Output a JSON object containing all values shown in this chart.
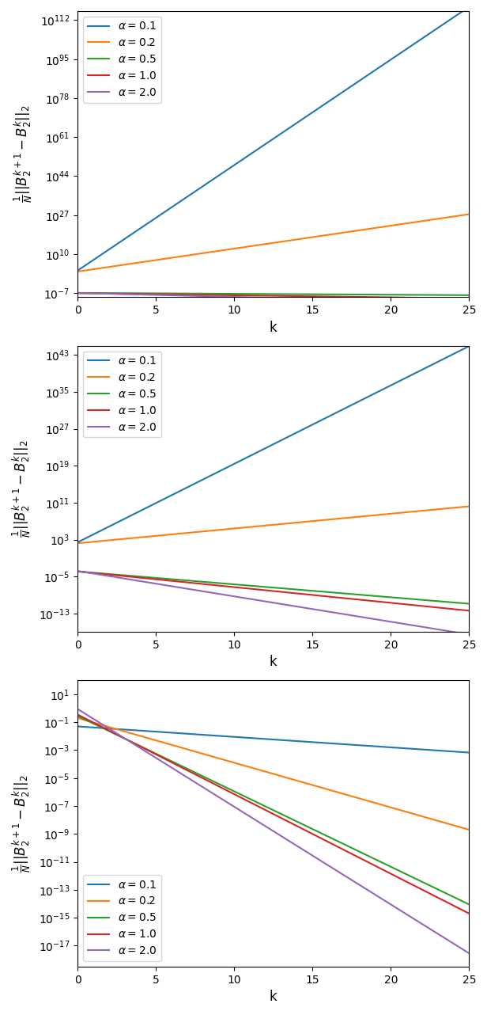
{
  "alphas": [
    0.1,
    0.2,
    0.5,
    1.0,
    2.0
  ],
  "colors": [
    "#1f77b4",
    "#ff7f0e",
    "#2ca02c",
    "#d62728",
    "#9467bd"
  ],
  "k_max": 25,
  "subplot1": {
    "slopes_log10": [
      4.6,
      1.0,
      -0.04,
      -0.09,
      -0.17
    ],
    "intercepts_log10": [
      2.8,
      2.4,
      -6.9,
      -7.05,
      -6.95
    ],
    "ylim_log10": [
      -8.8,
      116.0
    ],
    "yticks_log10": [
      -7,
      10,
      27,
      44,
      61,
      78,
      95,
      112
    ],
    "legend_loc": "upper left"
  },
  "subplot2": {
    "slopes_log10": [
      1.7,
      0.32,
      -0.28,
      -0.34,
      -0.55
    ],
    "intercepts_log10": [
      2.4,
      2.2,
      -3.9,
      -3.9,
      -3.8
    ],
    "ylim_log10": [
      -17.0,
      45.0
    ],
    "yticks_log10": [
      -13,
      -5,
      3,
      11,
      19,
      27,
      35,
      43
    ],
    "legend_loc": "upper left"
  },
  "subplot3": {
    "slopes_log10": [
      -0.075,
      -0.32,
      -0.54,
      -0.57,
      -0.7
    ],
    "intercepts_log10": [
      -1.3,
      -0.7,
      -0.55,
      -0.45,
      -0.05
    ],
    "ylim_log10": [
      -18.5,
      2.0
    ],
    "yticks_log10": [
      -17,
      -15,
      -13,
      -11,
      -9,
      -7,
      -5,
      -3,
      -1,
      1
    ],
    "legend_loc": "lower left"
  },
  "ylabel": "$\\frac{1}{N}||B_2^{k+1} - B_2^k||_2$",
  "xlabel": "k",
  "alpha_labels": [
    "$\\alpha = 0.1$",
    "$\\alpha = 0.2$",
    "$\\alpha = 0.5$",
    "$\\alpha = 1.0$",
    "$\\alpha = 2.0$"
  ]
}
